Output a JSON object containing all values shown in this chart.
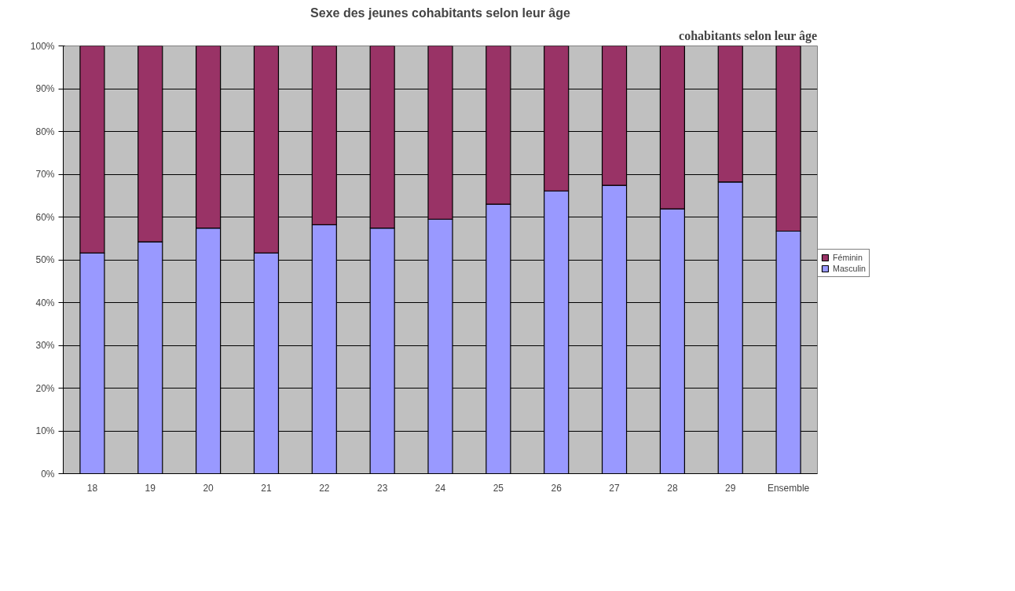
{
  "chart_data": {
    "type": "bar",
    "title": "Sexe des jeunes cohabitants selon leur âge",
    "annotations": [
      "cohabitants selon leur âge"
    ],
    "categories": [
      "18",
      "19",
      "20",
      "21",
      "22",
      "23",
      "24",
      "25",
      "26",
      "27",
      "28",
      "29",
      "Ensemble"
    ],
    "stacked": true,
    "series": [
      {
        "name": "Masculin",
        "color": "#9999ff",
        "values": [
          51.6,
          54.2,
          57.4,
          51.6,
          58.2,
          57.4,
          59.5,
          63.0,
          66.1,
          67.4,
          61.9,
          68.2,
          56.7
        ]
      },
      {
        "name": "Féminin",
        "color": "#993366",
        "values": [
          48.4,
          45.8,
          42.6,
          48.4,
          41.8,
          42.6,
          40.5,
          37.0,
          33.9,
          32.6,
          38.1,
          31.8,
          43.3
        ]
      }
    ],
    "ylim": [
      0,
      100
    ],
    "yticks": [
      {
        "value": 0,
        "label": "0%"
      },
      {
        "value": 10,
        "label": "10%"
      },
      {
        "value": 20,
        "label": "20%"
      },
      {
        "value": 30,
        "label": "30%"
      },
      {
        "value": 40,
        "label": "40%"
      },
      {
        "value": 50,
        "label": "50%"
      },
      {
        "value": 60,
        "label": "60%"
      },
      {
        "value": 70,
        "label": "70%"
      },
      {
        "value": 80,
        "label": "80%"
      },
      {
        "value": 90,
        "label": "90%"
      },
      {
        "value": 100,
        "label": "100%"
      }
    ],
    "grid": "y",
    "legend": "right"
  }
}
